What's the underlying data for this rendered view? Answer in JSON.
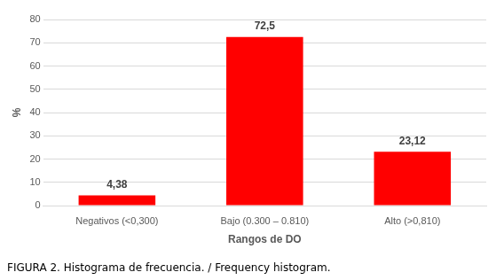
{
  "chart_data": {
    "type": "bar",
    "title": "FIGURA 2. Histograma de frecuencia. / Frequency histogram.",
    "x_label": "Rangos de DO",
    "y_label": "%",
    "categories": [
      "Negativos (<0,300)",
      "Bajo (0.300 – 0.810)",
      "Alto (>0,810)"
    ],
    "values": [
      4.38,
      72.5,
      23.12
    ],
    "value_labels": [
      "4,38",
      "72,5",
      "23,12"
    ],
    "color": "#ff0000",
    "ylim": [
      0,
      80
    ],
    "yticks": [
      0,
      10,
      20,
      30,
      40,
      50,
      60,
      70,
      80
    ],
    "grid": true,
    "data_labels": true
  }
}
